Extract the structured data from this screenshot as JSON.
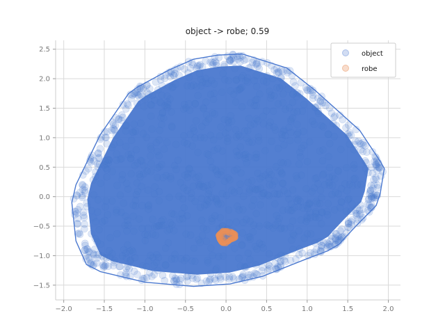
{
  "chart_data": {
    "type": "scatter",
    "title": "object -> robe; 0.59",
    "xlabel": "",
    "ylabel": "",
    "xlim": [
      -2.1,
      2.15
    ],
    "ylim": [
      -1.75,
      2.65
    ],
    "xticks": [
      -2.0,
      -1.5,
      -1.0,
      -0.5,
      0.0,
      0.5,
      1.0,
      1.5,
      2.0
    ],
    "xtick_labels": [
      "−2.0",
      "−1.5",
      "−1.0",
      "−0.5",
      "0.0",
      "0.5",
      "1.0",
      "1.5",
      "2.0"
    ],
    "yticks": [
      -1.5,
      -1.0,
      -0.5,
      0.0,
      0.5,
      1.0,
      1.5,
      2.0,
      2.5
    ],
    "ytick_labels": [
      "−1.5",
      "−1.0",
      "−0.5",
      "0.0",
      "0.5",
      "1.0",
      "1.5",
      "2.0",
      "2.5"
    ],
    "grid": true,
    "legend_position": "top-right",
    "series": [
      {
        "name": "object",
        "color": "#4a78cf",
        "hull": [
          [
            -0.1,
            2.4
          ],
          [
            0.2,
            2.42
          ],
          [
            0.75,
            2.18
          ],
          [
            1.1,
            1.8
          ],
          [
            1.65,
            1.12
          ],
          [
            1.9,
            0.6
          ],
          [
            1.95,
            0.48
          ],
          [
            1.9,
            0.05
          ],
          [
            1.85,
            -0.15
          ],
          [
            1.6,
            -0.5
          ],
          [
            1.45,
            -0.72
          ],
          [
            1.4,
            -0.8
          ],
          [
            1.25,
            -0.92
          ],
          [
            1.0,
            -1.05
          ],
          [
            0.45,
            -1.35
          ],
          [
            0.05,
            -1.48
          ],
          [
            -0.4,
            -1.52
          ],
          [
            -1.0,
            -1.45
          ],
          [
            -1.55,
            -1.27
          ],
          [
            -1.72,
            -1.15
          ],
          [
            -1.85,
            -0.75
          ],
          [
            -1.9,
            -0.1
          ],
          [
            -1.85,
            0.2
          ],
          [
            -1.55,
            1.05
          ],
          [
            -1.2,
            1.75
          ],
          [
            -1.1,
            1.85
          ],
          [
            -0.7,
            2.15
          ],
          [
            -0.4,
            2.33
          ]
        ]
      },
      {
        "name": "robe",
        "color": "#e8905a",
        "hull": [
          [
            -0.04,
            -0.57
          ],
          [
            0.05,
            -0.58
          ],
          [
            0.12,
            -0.63
          ],
          [
            0.12,
            -0.7
          ],
          [
            0.05,
            -0.74
          ],
          [
            0.0,
            -0.8
          ],
          [
            -0.05,
            -0.79
          ],
          [
            -0.09,
            -0.72
          ],
          [
            -0.1,
            -0.65
          ]
        ]
      }
    ]
  }
}
